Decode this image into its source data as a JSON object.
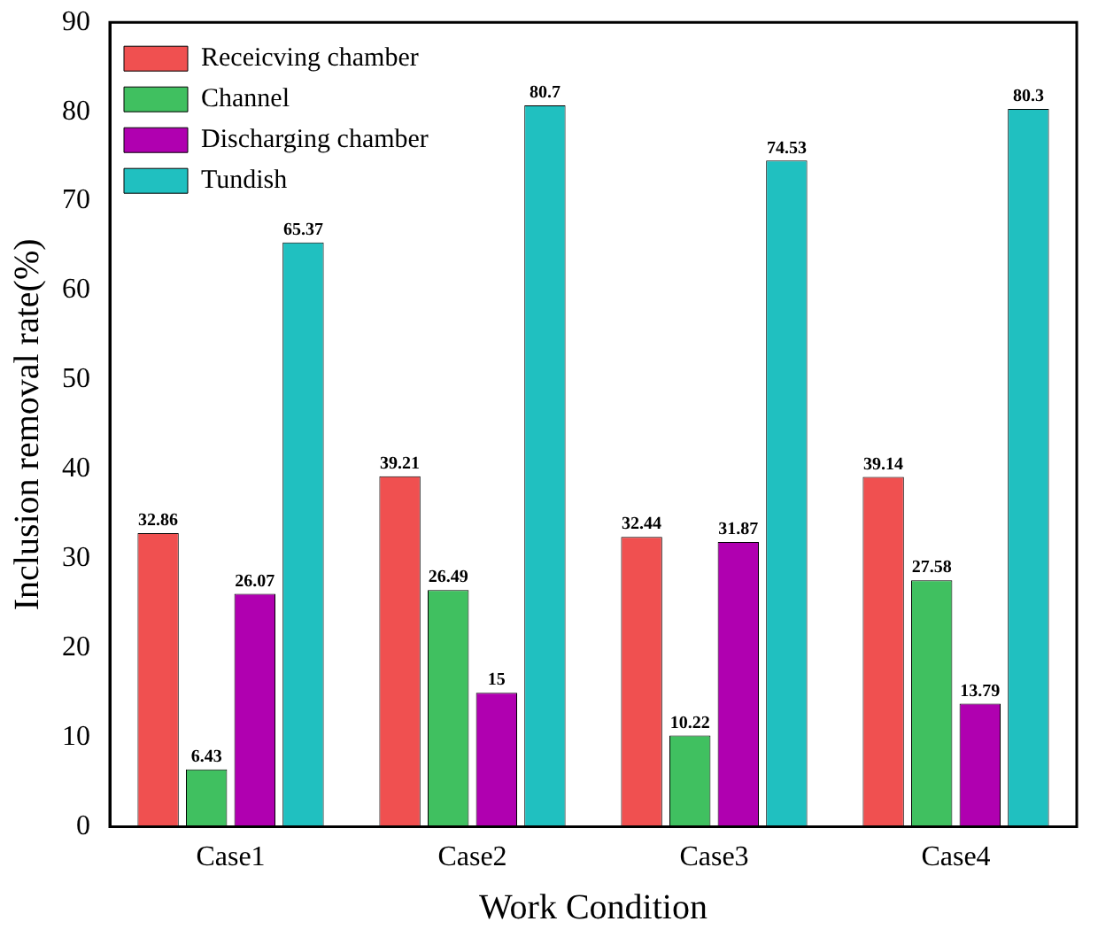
{
  "chart_data": {
    "type": "bar",
    "xlabel": "Work Condition",
    "ylabel": "Inclusion removal rate(%)",
    "categories": [
      "Case1",
      "Case2",
      "Case3",
      "Case4"
    ],
    "series": [
      {
        "name": "Receicving chamber",
        "color": "#f05050",
        "values": [
          32.86,
          39.21,
          32.44,
          39.14
        ]
      },
      {
        "name": "Channel",
        "color": "#40c060",
        "values": [
          6.43,
          26.49,
          10.22,
          27.58
        ]
      },
      {
        "name": "Discharging chamber",
        "color": "#b000b0",
        "values": [
          26.07,
          15,
          31.87,
          13.79
        ]
      },
      {
        "name": "Tundish",
        "color": "#20c0c0",
        "values": [
          65.37,
          80.7,
          74.53,
          80.3
        ]
      }
    ],
    "ylim": [
      0,
      90
    ],
    "yticks": [
      0,
      10,
      20,
      30,
      40,
      50,
      60,
      70,
      80,
      90
    ],
    "data_labels": true,
    "legend": "top left"
  }
}
